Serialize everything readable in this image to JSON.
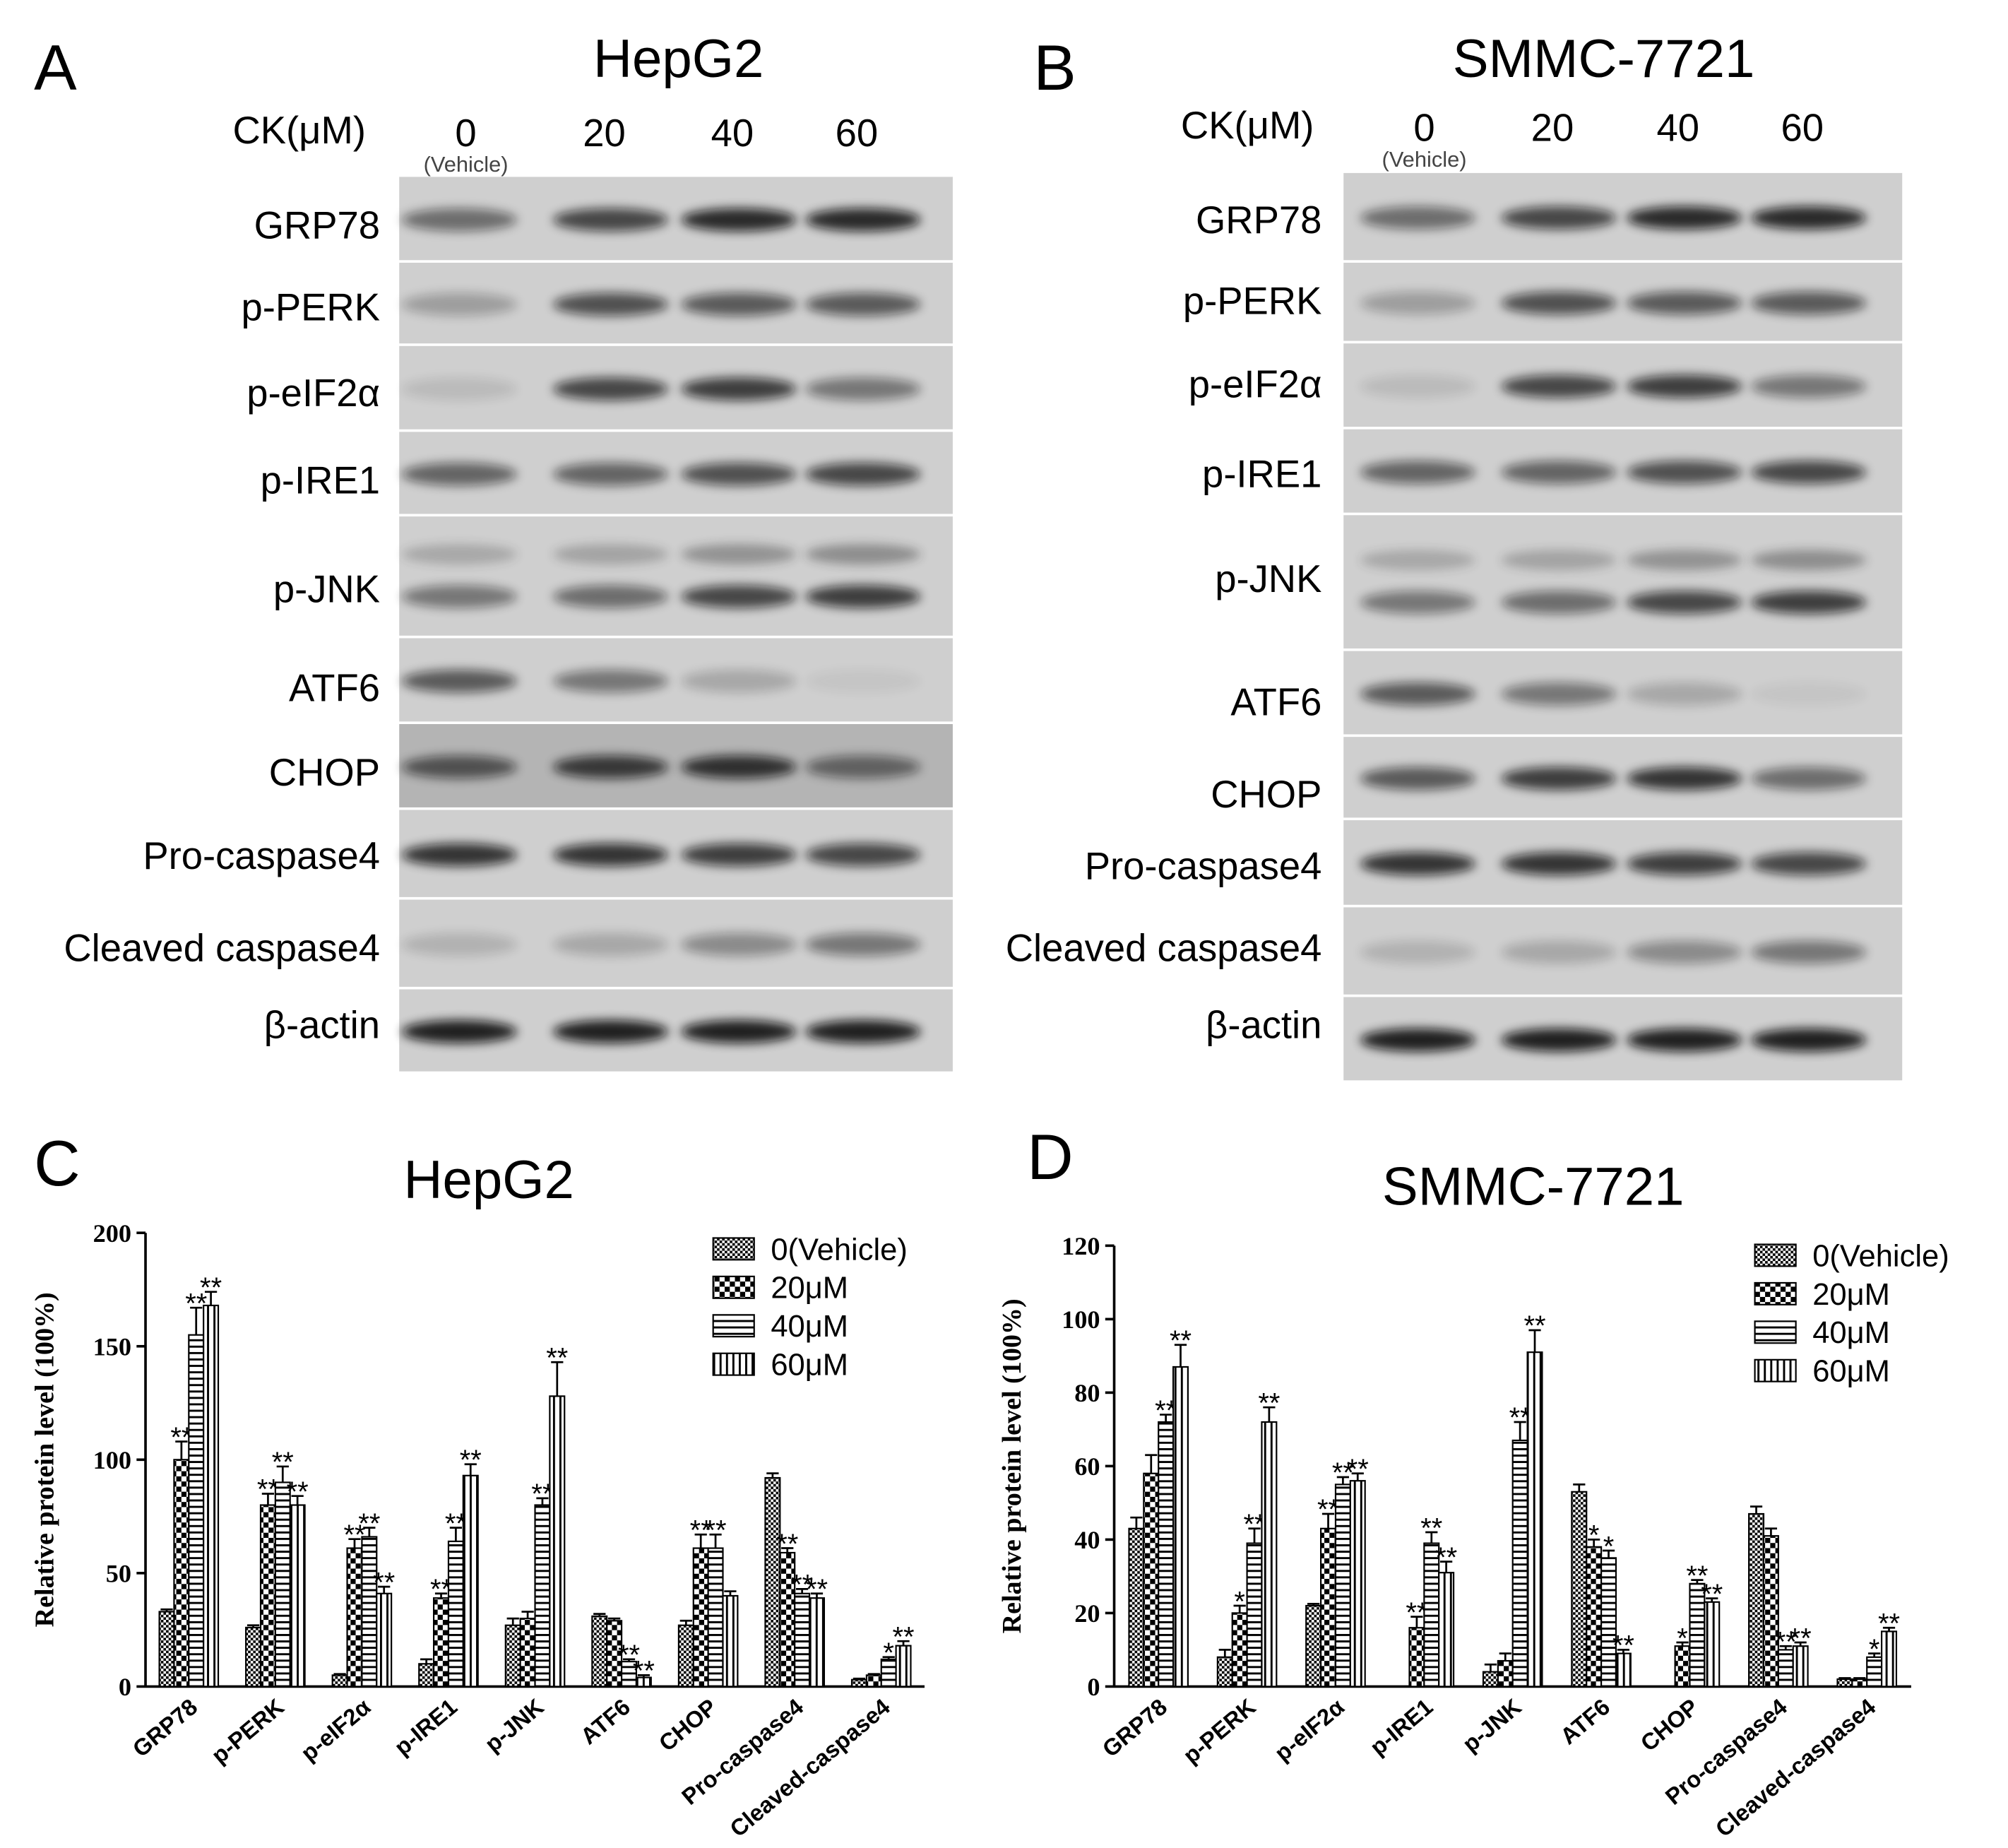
{
  "panels": [
    {
      "letter": "A",
      "title": "HepG2",
      "dose_label": "CK(μM)",
      "doses": [
        "0",
        "20",
        "40",
        "60"
      ],
      "vehicle": "(Vehicle)",
      "proteins": [
        "GRP78",
        "p-PERK",
        "p-eIF2α",
        "p-IRE1",
        "p-JNK",
        "ATF6",
        "CHOP",
        "Pro-caspase4",
        "Cleaved caspase4",
        "β-actin"
      ]
    },
    {
      "letter": "B",
      "title": "SMMC-7721",
      "dose_label": "CK(μM)",
      "doses": [
        "0",
        "20",
        "40",
        "60"
      ],
      "vehicle": "(Vehicle)",
      "proteins": [
        "GRP78",
        "p-PERK",
        "p-eIF2α",
        "p-IRE1",
        "p-JNK",
        "ATF6",
        "CHOP",
        "Pro-caspase4",
        "Cleaved caspase4",
        "β-actin"
      ]
    }
  ],
  "chart_data": [
    {
      "type": "bar",
      "letter": "C",
      "title": "HepG2",
      "y_label": "Relative protein level (100%)",
      "categories": [
        "GRP78",
        "p-PERK",
        "p-eIF2α",
        "p-IRE1",
        "p-JNK",
        "ATF6",
        "CHOP",
        "Pro-caspase4",
        "Cleaved-caspase4"
      ],
      "ylim": [
        0,
        200
      ],
      "yticks": [
        0,
        50,
        100,
        150,
        200
      ],
      "series": [
        {
          "name": "0(Vehicle)",
          "pattern": "fine-checker",
          "values": [
            33,
            26,
            5,
            10,
            27,
            31,
            27,
            92,
            3
          ],
          "errors": [
            1,
            1,
            0.5,
            2,
            3,
            1,
            2,
            2,
            0.5
          ],
          "annotations": [
            null,
            null,
            null,
            null,
            null,
            null,
            null,
            null,
            null
          ]
        },
        {
          "name": "20μM",
          "pattern": "checker",
          "values": [
            100,
            80,
            61,
            39,
            30,
            29,
            61,
            59,
            5
          ],
          "errors": [
            8,
            5,
            4,
            2,
            3,
            1,
            6,
            2,
            0.5
          ],
          "annotations": [
            "**",
            "**",
            "**",
            "**",
            null,
            null,
            "**",
            "**",
            null
          ]
        },
        {
          "name": "40μM",
          "pattern": "hlines",
          "values": [
            155,
            90,
            66,
            64,
            80,
            11,
            61,
            41,
            12
          ],
          "errors": [
            12,
            7,
            4,
            6,
            3,
            1,
            6,
            2,
            1
          ],
          "annotations": [
            "**",
            "**",
            "**",
            "**",
            "**",
            "**",
            "**",
            "**",
            "*"
          ]
        },
        {
          "name": "60μM",
          "pattern": "vlines",
          "values": [
            168,
            80,
            41,
            93,
            128,
            4,
            40,
            39,
            18
          ],
          "errors": [
            6,
            4,
            3,
            5,
            15,
            1,
            2,
            2,
            2
          ],
          "annotations": [
            "**",
            "**",
            "**",
            "**",
            "**",
            "**",
            null,
            "**",
            "**"
          ]
        }
      ]
    },
    {
      "type": "bar",
      "letter": "D",
      "title": "SMMC-7721",
      "y_label": "Relative protein level (100%)",
      "categories": [
        "GRP78",
        "p-PERK",
        "p-eIF2α",
        "p-IRE1",
        "p-JNK",
        "ATF6",
        "CHOP",
        "Pro-caspase4",
        "Cleaved-caspase4"
      ],
      "ylim": [
        0,
        120
      ],
      "yticks": [
        0,
        20,
        40,
        60,
        80,
        100,
        120
      ],
      "series": [
        {
          "name": "0(Vehicle)",
          "pattern": "fine-checker",
          "values": [
            43,
            8,
            22,
            null,
            4,
            53,
            null,
            47,
            2
          ],
          "errors": [
            3,
            2,
            0.5,
            null,
            2,
            2,
            null,
            2,
            0.3
          ],
          "annotations": [
            null,
            null,
            null,
            null,
            null,
            null,
            null,
            null,
            null
          ]
        },
        {
          "name": "20μM",
          "pattern": "checker",
          "values": [
            58,
            20,
            43,
            16,
            7,
            38,
            11,
            41,
            2
          ],
          "errors": [
            5,
            2,
            4,
            3,
            2,
            2,
            1,
            2,
            0.3
          ],
          "annotations": [
            null,
            "*",
            "**",
            "**",
            null,
            "*",
            "*",
            null,
            null
          ]
        },
        {
          "name": "40μM",
          "pattern": "hlines",
          "values": [
            72,
            39,
            55,
            39,
            67,
            35,
            28,
            10,
            8
          ],
          "errors": [
            2,
            4,
            2,
            3,
            5,
            2,
            1,
            1,
            1
          ],
          "annotations": [
            "**",
            "**",
            "**",
            "**",
            "**",
            "*",
            "**",
            "**",
            "*"
          ]
        },
        {
          "name": "60μM",
          "pattern": "vlines",
          "values": [
            87,
            72,
            56,
            31,
            91,
            9,
            23,
            11,
            15
          ],
          "errors": [
            6,
            4,
            2,
            3,
            6,
            1,
            1,
            1,
            1
          ],
          "annotations": [
            "**",
            "**",
            "**",
            "**",
            "**",
            "**",
            "**",
            "**",
            "**"
          ]
        }
      ]
    }
  ]
}
